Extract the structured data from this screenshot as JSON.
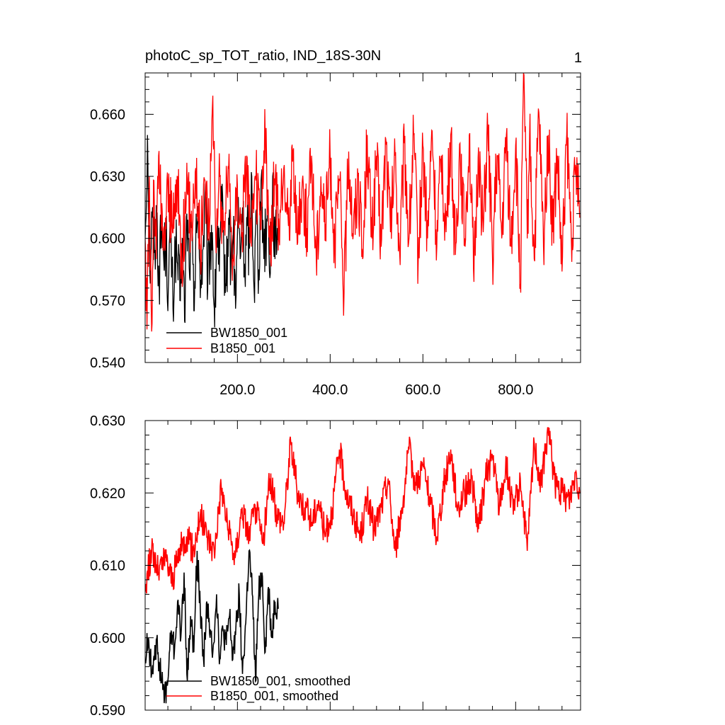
{
  "panel_number": "1",
  "chart_data": [
    {
      "type": "line",
      "title": "photoC_sp_TOT_ratio, IND_18S-30N",
      "xlabel": "",
      "ylabel": "",
      "xlim": [
        1,
        940
      ],
      "ylim": [
        0.54,
        0.68
      ],
      "x_ticks": [
        200,
        400,
        600,
        800
      ],
      "x_tick_labels": [
        "200.0",
        "400.0",
        "600.0",
        "800.0"
      ],
      "y_ticks": [
        0.54,
        0.57,
        0.6,
        0.63,
        0.66
      ],
      "y_tick_labels": [
        "0.540",
        "0.570",
        "0.600",
        "0.630",
        "0.660"
      ],
      "grid": false,
      "legend_position": "bottom-left",
      "series": [
        {
          "name": "BW1850_001",
          "color": "#000000",
          "x_range": [
            1,
            288
          ],
          "x": [
            1,
            6,
            11,
            16,
            21,
            26,
            31,
            36,
            41,
            46,
            51,
            56,
            61,
            66,
            71,
            76,
            81,
            86,
            91,
            96,
            101,
            106,
            111,
            116,
            121,
            126,
            131,
            136,
            141,
            146,
            151,
            156,
            161,
            166,
            171,
            176,
            181,
            186,
            191,
            196,
            201,
            206,
            211,
            216,
            221,
            226,
            231,
            236,
            241,
            246,
            251,
            256,
            261,
            266,
            271,
            276,
            281,
            286,
            288
          ],
          "values": [
            0.6,
            0.65,
            0.585,
            0.61,
            0.593,
            0.612,
            0.58,
            0.606,
            0.59,
            0.6,
            0.575,
            0.605,
            0.566,
            0.597,
            0.588,
            0.57,
            0.6,
            0.56,
            0.612,
            0.586,
            0.605,
            0.565,
            0.612,
            0.6,
            0.58,
            0.595,
            0.62,
            0.575,
            0.597,
            0.603,
            0.557,
            0.61,
            0.584,
            0.615,
            0.592,
            0.577,
            0.61,
            0.588,
            0.6,
            0.566,
            0.612,
            0.59,
            0.615,
            0.583,
            0.606,
            0.595,
            0.63,
            0.575,
            0.614,
            0.585,
            0.628,
            0.6,
            0.6,
            0.62,
            0.583,
            0.63,
            0.59,
            0.605,
            0.612
          ]
        },
        {
          "name": "B1850_001",
          "color": "#ff0000",
          "x_range": [
            1,
            938
          ],
          "x": [
            1,
            5,
            10,
            15,
            20,
            25,
            30,
            40,
            50,
            60,
            70,
            80,
            90,
            100,
            110,
            120,
            130,
            140,
            147,
            155,
            160,
            170,
            180,
            190,
            200,
            210,
            220,
            230,
            240,
            250,
            260,
            270,
            280,
            290,
            300,
            310,
            320,
            330,
            340,
            350,
            360,
            370,
            380,
            390,
            400,
            410,
            420,
            430,
            440,
            450,
            460,
            470,
            480,
            490,
            500,
            510,
            520,
            530,
            540,
            550,
            560,
            570,
            580,
            590,
            600,
            610,
            620,
            630,
            640,
            650,
            660,
            670,
            680,
            690,
            700,
            710,
            720,
            730,
            740,
            750,
            760,
            770,
            780,
            790,
            800,
            810,
            818,
            825,
            830,
            840,
            850,
            860,
            870,
            880,
            890,
            900,
            910,
            920,
            930,
            938
          ],
          "values": [
            0.6,
            0.556,
            0.63,
            0.555,
            0.628,
            0.59,
            0.64,
            0.594,
            0.626,
            0.603,
            0.63,
            0.59,
            0.622,
            0.608,
            0.634,
            0.596,
            0.628,
            0.606,
            0.669,
            0.6,
            0.627,
            0.604,
            0.635,
            0.59,
            0.626,
            0.603,
            0.64,
            0.596,
            0.628,
            0.604,
            0.65,
            0.592,
            0.629,
            0.6,
            0.634,
            0.606,
            0.642,
            0.598,
            0.628,
            0.605,
            0.64,
            0.59,
            0.63,
            0.607,
            0.64,
            0.597,
            0.628,
            0.574,
            0.642,
            0.602,
            0.63,
            0.59,
            0.65,
            0.6,
            0.64,
            0.596,
            0.648,
            0.603,
            0.64,
            0.592,
            0.646,
            0.6,
            0.65,
            0.59,
            0.645,
            0.6,
            0.652,
            0.596,
            0.64,
            0.603,
            0.65,
            0.592,
            0.646,
            0.6,
            0.65,
            0.579,
            0.644,
            0.603,
            0.652,
            0.59,
            0.64,
            0.6,
            0.65,
            0.596,
            0.645,
            0.578,
            0.679,
            0.6,
            0.65,
            0.59,
            0.661,
            0.596,
            0.65,
            0.603,
            0.64,
            0.584,
            0.65,
            0.6,
            0.634,
            0.61
          ]
        }
      ]
    },
    {
      "type": "line",
      "title": "",
      "xlabel": "",
      "ylabel": "",
      "xlim": [
        1,
        940
      ],
      "ylim": [
        0.59,
        0.63
      ],
      "x_ticks": [
        200,
        400,
        600,
        800
      ],
      "x_tick_labels": [],
      "y_ticks": [
        0.59,
        0.6,
        0.61,
        0.62,
        0.63
      ],
      "y_tick_labels": [
        "0.590",
        "0.600",
        "0.610",
        "0.620",
        "0.630"
      ],
      "grid": false,
      "legend_position": "bottom-left",
      "series": [
        {
          "name": "BW1850_001, smoothed",
          "color": "#000000",
          "x_range": [
            1,
            288
          ],
          "x": [
            1,
            8,
            15,
            22,
            29,
            36,
            43,
            50,
            57,
            64,
            71,
            78,
            85,
            92,
            99,
            106,
            113,
            120,
            127,
            134,
            141,
            148,
            155,
            162,
            169,
            176,
            183,
            190,
            197,
            204,
            211,
            218,
            225,
            232,
            239,
            246,
            253,
            260,
            267,
            274,
            281,
            288
          ],
          "values": [
            0.597,
            0.6,
            0.595,
            0.599,
            0.598,
            0.594,
            0.592,
            0.594,
            0.601,
            0.598,
            0.605,
            0.6,
            0.609,
            0.594,
            0.603,
            0.598,
            0.612,
            0.604,
            0.597,
            0.605,
            0.6,
            0.599,
            0.606,
            0.597,
            0.601,
            0.599,
            0.603,
            0.597,
            0.602,
            0.606,
            0.595,
            0.602,
            0.612,
            0.606,
            0.594,
            0.606,
            0.609,
            0.598,
            0.607,
            0.6,
            0.605,
            0.604
          ]
        },
        {
          "name": "B1850_001, smoothed",
          "color": "#ff0000",
          "x_range": [
            1,
            938
          ],
          "x": [
            1,
            15,
            30,
            45,
            60,
            75,
            90,
            105,
            120,
            135,
            150,
            165,
            180,
            195,
            210,
            225,
            240,
            255,
            270,
            285,
            300,
            315,
            330,
            345,
            360,
            375,
            390,
            405,
            420,
            435,
            450,
            465,
            480,
            495,
            510,
            525,
            540,
            555,
            570,
            585,
            600,
            615,
            630,
            645,
            660,
            675,
            690,
            705,
            720,
            735,
            750,
            765,
            780,
            795,
            810,
            825,
            840,
            855,
            870,
            885,
            900,
            915,
            930,
            938
          ],
          "values": [
            0.607,
            0.612,
            0.609,
            0.611,
            0.608,
            0.612,
            0.614,
            0.612,
            0.617,
            0.614,
            0.612,
            0.621,
            0.615,
            0.611,
            0.618,
            0.614,
            0.618,
            0.613,
            0.622,
            0.617,
            0.616,
            0.627,
            0.62,
            0.618,
            0.616,
            0.619,
            0.614,
            0.618,
            0.626,
            0.62,
            0.617,
            0.614,
            0.619,
            0.615,
            0.618,
            0.622,
            0.612,
            0.618,
            0.626,
            0.621,
            0.624,
            0.619,
            0.614,
            0.621,
            0.626,
            0.618,
            0.62,
            0.622,
            0.615,
            0.622,
            0.625,
            0.618,
            0.624,
            0.617,
            0.622,
            0.612,
            0.627,
            0.621,
            0.629,
            0.621,
            0.62,
            0.619,
            0.623,
            0.62
          ]
        }
      ]
    }
  ]
}
